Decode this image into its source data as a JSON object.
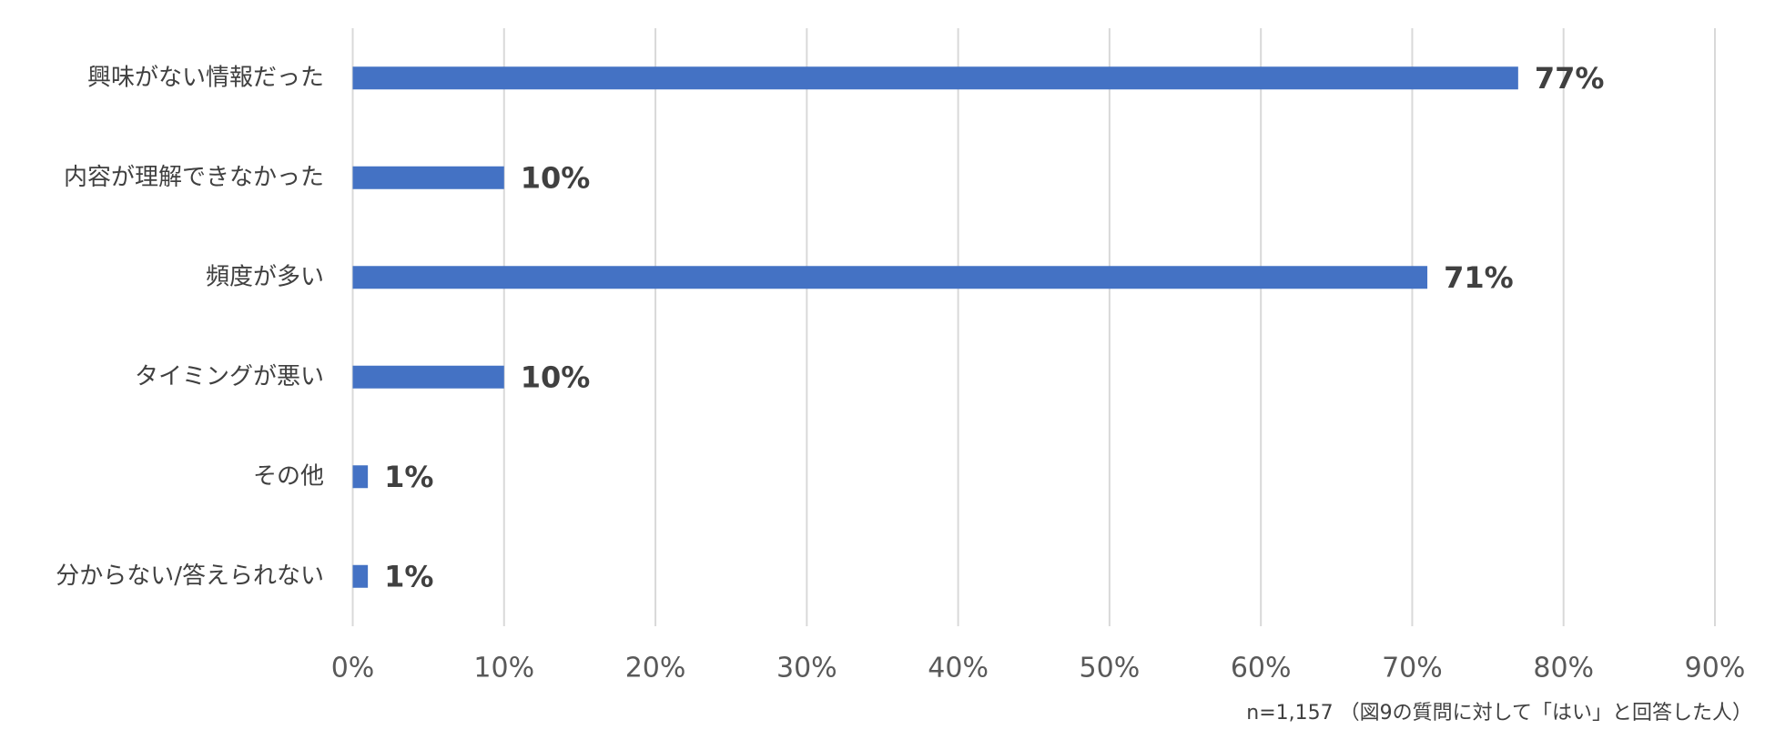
{
  "chart_data": {
    "type": "barh",
    "categories": [
      "興味がない情報だった",
      "内容が理解できなかった",
      "頻度が多い",
      "タイミングが悪い",
      "その他",
      "分からない/答えられない"
    ],
    "values": [
      77,
      10,
      71,
      10,
      1,
      1
    ],
    "value_labels": [
      "77%",
      "10%",
      "71%",
      "10%",
      "1%",
      "1%"
    ],
    "color": "#4472c4",
    "xlim": [
      0,
      90
    ],
    "xticks": [
      {
        "value": 0,
        "label": "0%"
      },
      {
        "value": 10,
        "label": "10%"
      },
      {
        "value": 20,
        "label": "20%"
      },
      {
        "value": 30,
        "label": "30%"
      },
      {
        "value": 40,
        "label": "40%"
      },
      {
        "value": 50,
        "label": "50%"
      },
      {
        "value": 60,
        "label": "60%"
      },
      {
        "value": 70,
        "label": "70%"
      },
      {
        "value": 80,
        "label": "80%"
      },
      {
        "value": 90,
        "label": "90%"
      }
    ],
    "grid": true,
    "note": "n=1,157 （図9の質問に対して「はい」と回答した人）"
  }
}
